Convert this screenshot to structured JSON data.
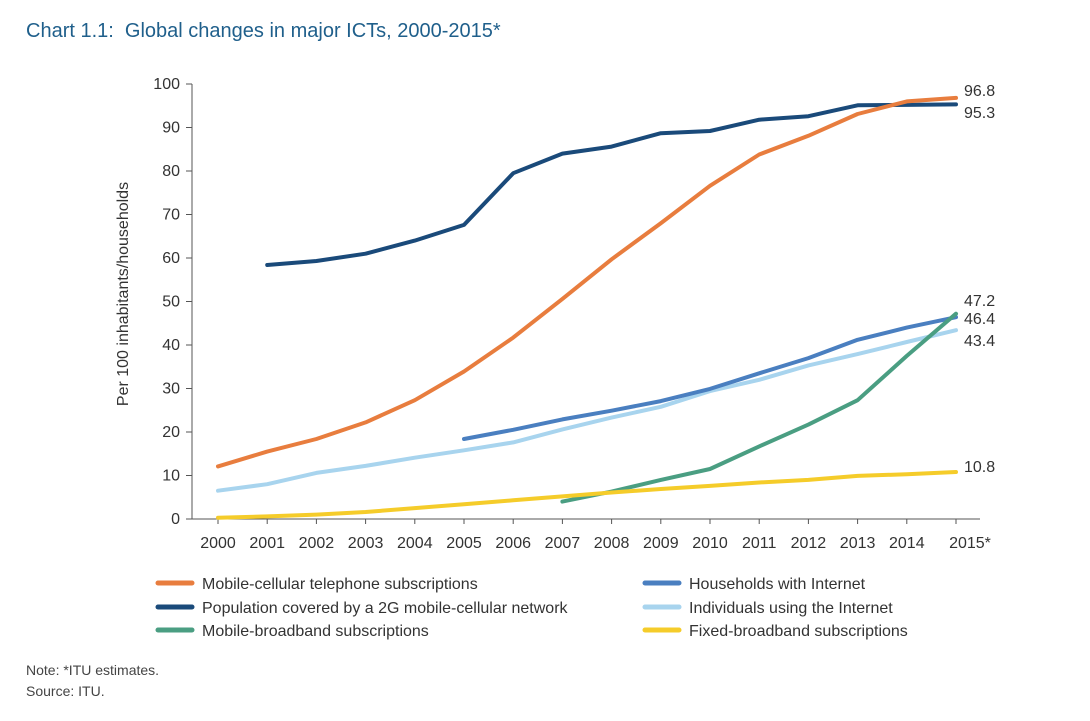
{
  "title": "Chart 1.1:  Global changes in major ICTs, 2000-2015*",
  "note": "Note: *ITU estimates.",
  "source": "Source: ITU.",
  "chart_data": {
    "type": "line",
    "title": "Chart 1.1:  Global changes in major ICTs, 2000-2015*",
    "xlabel": "",
    "ylabel": "Per 100 inhabitants/households",
    "ylim": [
      0,
      100
    ],
    "yticks": [
      0,
      10,
      20,
      30,
      40,
      50,
      60,
      70,
      80,
      90,
      100
    ],
    "categories": [
      "2000",
      "2001",
      "2002",
      "2003",
      "2004",
      "2005",
      "2006",
      "2007",
      "2008",
      "2009",
      "2010",
      "2011",
      "2012",
      "2013",
      "2014",
      "2015*"
    ],
    "grid": false,
    "legend_position": "bottom",
    "series": [
      {
        "name": "Mobile-cellular telephone subscriptions",
        "color": "#e87d3e",
        "values": [
          12.1,
          15.5,
          18.4,
          22.2,
          27.3,
          33.9,
          41.7,
          50.6,
          59.7,
          68.0,
          76.6,
          83.8,
          88.1,
          93.1,
          96.0,
          96.8
        ],
        "end_label": "96.8"
      },
      {
        "name": "Population covered by a 2G mobile-cellular network",
        "color": "#1a4a7a",
        "values": [
          null,
          58.4,
          59.3,
          61.0,
          64.0,
          67.6,
          79.5,
          84.0,
          85.6,
          88.7,
          89.2,
          91.8,
          92.6,
          95.1,
          95.2,
          95.3
        ],
        "end_label": "95.3"
      },
      {
        "name": "Mobile-broadband subscriptions",
        "color": "#4a9e82",
        "values": [
          null,
          null,
          null,
          null,
          null,
          null,
          null,
          4.0,
          6.3,
          9.0,
          11.5,
          16.7,
          21.7,
          27.3,
          37.5,
          47.2
        ],
        "end_label": "47.2"
      },
      {
        "name": "Households with Internet",
        "color": "#4a7fc0",
        "values": [
          null,
          null,
          null,
          null,
          null,
          18.4,
          20.5,
          22.9,
          24.9,
          27.1,
          29.9,
          33.5,
          37.0,
          41.2,
          44.0,
          46.4
        ],
        "end_label": "46.4"
      },
      {
        "name": "Individuals using the Internet",
        "color": "#a8d4ee",
        "values": [
          6.5,
          8.0,
          10.6,
          12.2,
          14.1,
          15.8,
          17.6,
          20.6,
          23.3,
          25.8,
          29.4,
          32.0,
          35.3,
          37.9,
          40.7,
          43.4
        ],
        "end_label": "43.4"
      },
      {
        "name": "Fixed-broadband subscriptions",
        "color": "#f5cc2a",
        "values": [
          0.3,
          0.6,
          1.0,
          1.6,
          2.5,
          3.4,
          4.3,
          5.2,
          6.1,
          6.9,
          7.6,
          8.4,
          9.0,
          9.9,
          10.3,
          10.8
        ],
        "end_label": "10.8"
      }
    ]
  }
}
